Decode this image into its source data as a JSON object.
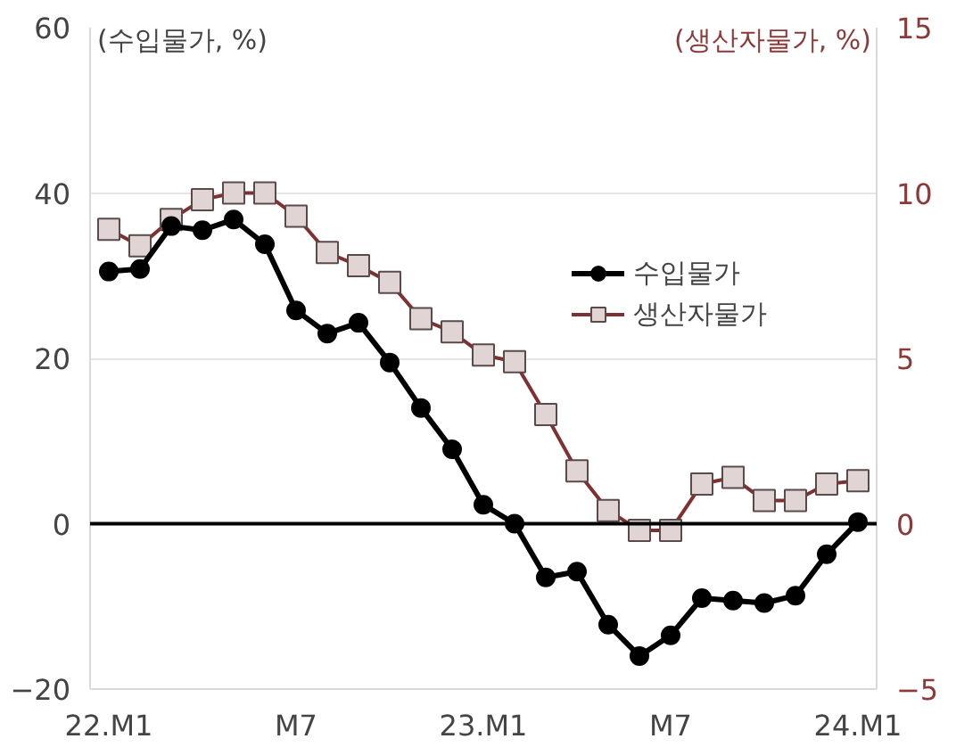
{
  "chart_data": {
    "type": "line",
    "ylabel": "(수입물가, %)",
    "y2label": "(생산자물가, %)",
    "categories": [
      "22.M1",
      null,
      null,
      null,
      null,
      null,
      "M7",
      null,
      null,
      null,
      null,
      null,
      "23.M1",
      null,
      null,
      null,
      null,
      null,
      "M7",
      null,
      null,
      null,
      null,
      null,
      "24.M1"
    ],
    "series": [
      {
        "name": "수입물가",
        "color": "#000000",
        "marker": "circle",
        "values": [
          30.5,
          30.8,
          36,
          35.5,
          36.8,
          33.8,
          25.8,
          23,
          24.3,
          19.5,
          14,
          9,
          2.3,
          0,
          -6.5,
          -5.8,
          -12.2,
          -16,
          -13.5,
          -9,
          -9.3,
          -9.6,
          -8.7,
          -3.7,
          0.2
        ]
      },
      {
        "name": "생산자물가",
        "color": "#7f3030",
        "marker": "square",
        "axis": "y2",
        "values": [
          8.9,
          8.4,
          9.2,
          9.8,
          10.0,
          10.0,
          9.3,
          8.2,
          7.8,
          7.3,
          6.2,
          5.8,
          5.1,
          4.9,
          3.3,
          1.6,
          0.4,
          -0.2,
          -0.2,
          1.2,
          1.4,
          0.7,
          0.7,
          1.2,
          1.3
        ]
      }
    ],
    "ylim": [
      -20,
      60
    ],
    "yticks": [
      -20,
      0,
      20,
      40,
      60
    ],
    "y2lim": [
      -5,
      15
    ],
    "y2ticks": [
      -5,
      0,
      5,
      10,
      15
    ],
    "ref_lines": [
      {
        "axis": "y",
        "value": 0,
        "color": "#000000"
      }
    ],
    "grid": "y",
    "legend": "top right"
  }
}
